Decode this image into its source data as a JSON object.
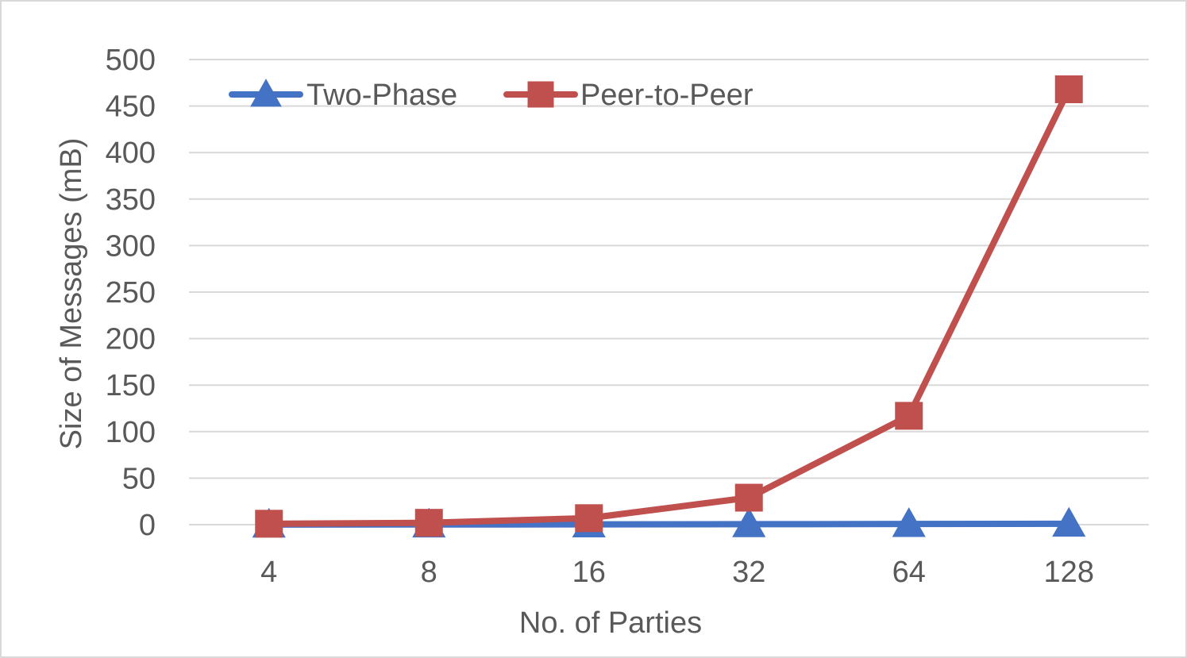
{
  "chart_data": {
    "type": "line",
    "categories": [
      "4",
      "8",
      "16",
      "32",
      "64",
      "128"
    ],
    "series": [
      {
        "name": "Two-Phase",
        "values": [
          0.1,
          0.2,
          0.3,
          0.5,
          0.7,
          1.0
        ],
        "color": "#4472C4",
        "marker": "triangle"
      },
      {
        "name": "Peer-to-Peer",
        "values": [
          1,
          2,
          7,
          29,
          117,
          468
        ],
        "color": "#C0504D",
        "marker": "square"
      }
    ],
    "xlabel": "No. of Parties",
    "ylabel": "Size of Messages (mB)",
    "ylim": [
      0,
      500
    ],
    "yticks": [
      0,
      50,
      100,
      150,
      200,
      250,
      300,
      350,
      400,
      450,
      500
    ],
    "grid": true,
    "legend_position": "top-left",
    "border_color": "#D9D9D9",
    "gridline_color": "#D9D9D9",
    "text_color": "#595959"
  }
}
